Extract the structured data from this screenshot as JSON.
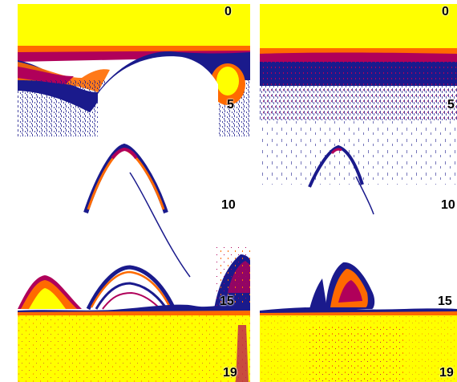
{
  "colors": {
    "background": "#ffffff",
    "surface": "#ffff00",
    "strong": "#ff6a00",
    "mid": "#b0005a",
    "weak": "#1a1a8c",
    "bottom": "#ffff00",
    "depth_text": "#000000"
  },
  "left_panel": {
    "depth_scale": {
      "top": "0",
      "d5": "5",
      "d10": "10",
      "d15": "15",
      "bottom": "19"
    }
  },
  "right_panel": {
    "depth_scale": {
      "top": "0",
      "d5": "5",
      "d10": "10",
      "d15": "15",
      "bottom": "19"
    }
  }
}
